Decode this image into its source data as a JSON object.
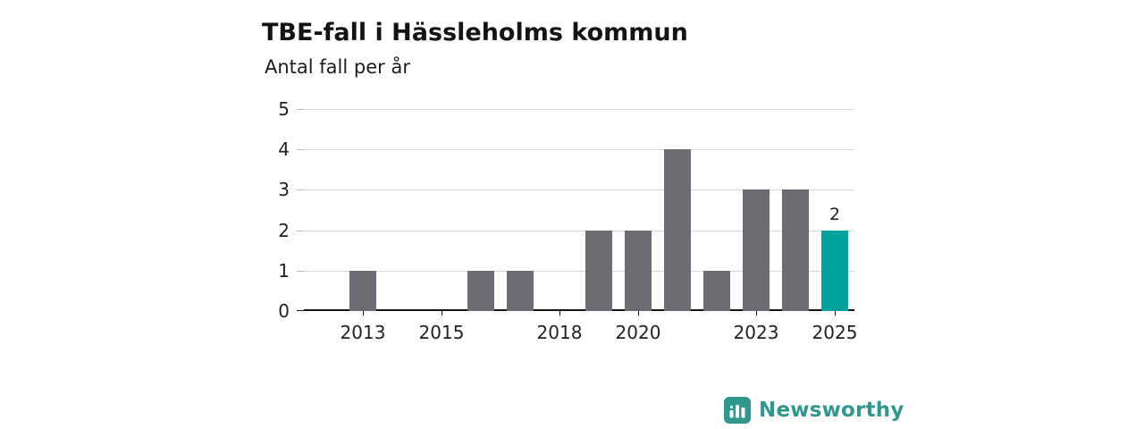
{
  "chart_data": {
    "type": "bar",
    "title": "TBE-fall i Hässleholms kommun",
    "subtitle": "Antal fall per år",
    "categories": [
      "2012",
      "2013",
      "2014",
      "2015",
      "2016",
      "2017",
      "2018",
      "2019",
      "2020",
      "2021",
      "2022",
      "2023",
      "2024",
      "2025"
    ],
    "values": [
      0,
      1,
      0,
      0,
      1,
      1,
      0,
      2,
      2,
      4,
      1,
      3,
      3,
      2
    ],
    "highlight_index": 13,
    "data_labels": [
      {
        "index": 13,
        "text": "2"
      }
    ],
    "y_ticks": [
      "0",
      "1",
      "2",
      "3",
      "4",
      "5"
    ],
    "ylim": [
      0,
      5
    ],
    "grid": true,
    "legend": "none",
    "x_ticks": [
      {
        "index": 1,
        "label": "2013"
      },
      {
        "index": 3,
        "label": "2015"
      },
      {
        "index": 6,
        "label": "2018"
      },
      {
        "index": 8,
        "label": "2020"
      },
      {
        "index": 11,
        "label": "2023"
      },
      {
        "index": 13,
        "label": "2025"
      }
    ],
    "colors": {
      "bar_default": "#6e6a71",
      "bar_highlight": "#00a29b",
      "gridline": "#d9d9d9",
      "axis": "#141414",
      "tick_text": "#222222"
    }
  },
  "footer": {
    "brand": "Newsworthy",
    "brand_color": "#2f978d",
    "logo_icon": "newsworthy-bar-chart-logo-icon"
  }
}
